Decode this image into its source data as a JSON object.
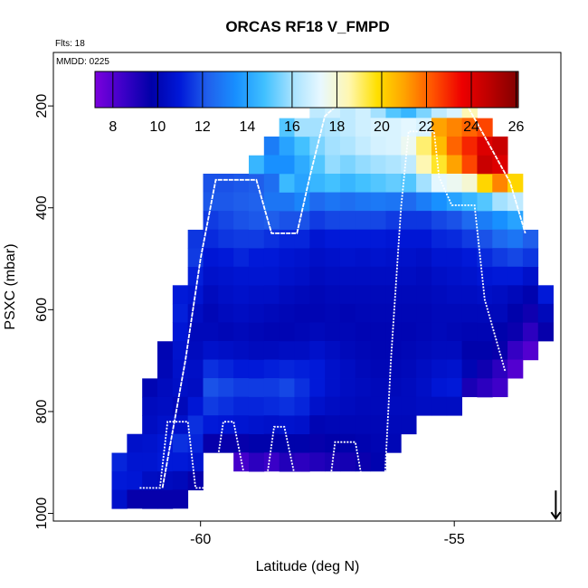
{
  "chart_data": {
    "type": "heatmap",
    "title": "ORCAS RF18 V_FMPD",
    "flights_note": "Flts: 18",
    "date_note": "MMDD: 0225",
    "xlabel": "Latitude (deg N)",
    "ylabel": "PSXC (mbar)",
    "xlim": [
      -62.9,
      -52.9
    ],
    "ylim": [
      1015,
      95
    ],
    "x_ticks": [
      -60,
      -55
    ],
    "x_tick_labels": [
      "-60",
      "-55"
    ],
    "y_ticks": [
      200,
      400,
      600,
      800,
      1000
    ],
    "y_tick_labels": [
      "200",
      "400",
      "600",
      "800",
      "1000"
    ],
    "colorbar": {
      "min": 7.2,
      "max": 26.1,
      "ticks": [
        8,
        10,
        12,
        14,
        16,
        18,
        20,
        22,
        24,
        26
      ],
      "tick_labels": [
        "8",
        "10",
        "12",
        "14",
        "16",
        "18",
        "20",
        "22",
        "24",
        "26"
      ],
      "colors": [
        "#7b00dd",
        "#3c00c8",
        "#0000a8",
        "#0018d8",
        "#2060ec",
        "#1890ff",
        "#40c0ff",
        "#a6e2ff",
        "#e8f8ff",
        "#fff7b0",
        "#ffe000",
        "#ffa000",
        "#ff5000",
        "#ee0000",
        "#bb0000",
        "#800000"
      ]
    },
    "bin": {
      "dlat": 0.3,
      "dp": 36.5
    },
    "columns": [
      {
        "lat": -61.6,
        "p_top": 881,
        "values": [
          11.2,
          11.0,
          10.6
        ]
      },
      {
        "lat": -61.3,
        "p_top": 844,
        "values": [
          10.6,
          10.8,
          10.9,
          9.6
        ]
      },
      {
        "lat": -61.0,
        "p_top": 735,
        "values": [
          10.0,
          10.3,
          10.4,
          10.7,
          10.8,
          10.4,
          9.6
        ]
      },
      {
        "lat": -60.7,
        "p_top": 662,
        "values": [
          10.0,
          10.1,
          10.3,
          10.4,
          10.6,
          10.9,
          11.0,
          10.3,
          9.6
        ]
      },
      {
        "lat": -60.4,
        "p_top": 552,
        "values": [
          11.0,
          11.1,
          10.9,
          10.7,
          10.6,
          10.5,
          10.2,
          10.6,
          11.4,
          11.0,
          10.2,
          9.6
        ]
      },
      {
        "lat": -60.1,
        "p_top": 443,
        "values": [
          11.5,
          11.6,
          11.1,
          10.8,
          10.4,
          10.2,
          10.3,
          10.5,
          10.4,
          10.9,
          11.4,
          11.2,
          10.8,
          9.6
        ]
      },
      {
        "lat": -59.8,
        "p_top": 333,
        "values": [
          12.0,
          12.1,
          11.6,
          11.3,
          10.9,
          10.6,
          10.3,
          10.1,
          10.2,
          10.6,
          11.4,
          12.0,
          11.6,
          11.0,
          9.6
        ]
      },
      {
        "lat": -59.5,
        "p_top": 333,
        "values": [
          12.0,
          12.1,
          11.8,
          11.5,
          11.0,
          10.7,
          10.5,
          10.3,
          10.1,
          10.5,
          11.2,
          11.8,
          11.4,
          10.9,
          9.6
        ]
      },
      {
        "lat": -59.2,
        "p_top": 333,
        "values": [
          12.1,
          12.2,
          12.0,
          11.6,
          11.2,
          10.8,
          10.6,
          10.4,
          10.2,
          10.4,
          11.0,
          11.6,
          11.2,
          10.8,
          9.6,
          8.3
        ]
      },
      {
        "lat": -58.9,
        "p_top": 297,
        "values": [
          14.5,
          12.2,
          12.3,
          12.1,
          11.6,
          11.0,
          10.8,
          10.5,
          10.3,
          10.1,
          10.3,
          11.0,
          11.6,
          11.2,
          10.7,
          9.8,
          8.8
        ]
      },
      {
        "lat": -58.6,
        "p_top": 260,
        "values": [
          13.0,
          13.5,
          12.6,
          12.8,
          12.2,
          11.4,
          11.0,
          10.8,
          10.5,
          10.2,
          10.0,
          10.3,
          11.1,
          11.6,
          11.3,
          10.6,
          9.8,
          8.5
        ]
      },
      {
        "lat": -58.3,
        "p_top": 224,
        "values": [
          15.0,
          14.0,
          13.5,
          14.6,
          12.8,
          12.0,
          11.2,
          10.8,
          10.6,
          10.3,
          10.1,
          10.0,
          10.4,
          11.2,
          11.8,
          11.4,
          10.7,
          9.8,
          9.0
        ]
      },
      {
        "lat": -58.0,
        "p_top": 224,
        "values": [
          16.0,
          14.8,
          14.2,
          14.0,
          13.2,
          12.0,
          11.2,
          10.7,
          10.5,
          10.2,
          10.0,
          10.1,
          10.4,
          11.1,
          11.4,
          11.2,
          10.6,
          9.8,
          8.8
        ]
      },
      {
        "lat": -57.7,
        "p_top": 187,
        "values": [
          16.5,
          16.0,
          15.5,
          15.0,
          14.5,
          12.5,
          11.6,
          10.8,
          10.5,
          10.3,
          10.1,
          10.0,
          10.2,
          10.6,
          11.0,
          11.0,
          10.6,
          10.0,
          9.6,
          9.0
        ]
      },
      {
        "lat": -57.4,
        "p_top": 187,
        "values": [
          16.8,
          16.2,
          16.0,
          15.8,
          14.8,
          12.8,
          11.8,
          11.0,
          10.6,
          10.4,
          10.2,
          10.1,
          10.1,
          10.4,
          10.6,
          10.6,
          10.4,
          10.1,
          9.7,
          9.2
        ]
      },
      {
        "lat": -57.1,
        "p_top": 187,
        "values": [
          16.5,
          16.5,
          16.2,
          15.5,
          14.5,
          12.6,
          11.8,
          11.0,
          10.7,
          10.4,
          10.2,
          10.0,
          10.1,
          10.2,
          10.4,
          10.4,
          10.3,
          10.1,
          9.8,
          9.3
        ]
      },
      {
        "lat": -56.8,
        "p_top": 187,
        "values": [
          16.8,
          16.8,
          16.6,
          15.8,
          14.8,
          12.8,
          11.8,
          11.0,
          10.6,
          10.4,
          10.2,
          10.1,
          10.0,
          10.1,
          10.2,
          10.3,
          10.2,
          10.1,
          9.9,
          9.5
        ]
      },
      {
        "lat": -56.5,
        "p_top": 187,
        "values": [
          16.0,
          17.0,
          16.9,
          16.0,
          15.0,
          12.9,
          11.8,
          11.0,
          10.7,
          10.4,
          10.2,
          10.1,
          10.0,
          10.0,
          10.1,
          10.2,
          10.2,
          10.1,
          10.0,
          9.9
        ]
      },
      {
        "lat": -56.2,
        "p_top": 187,
        "values": [
          15.0,
          17.0,
          17.0,
          16.2,
          15.2,
          12.8,
          11.6,
          10.9,
          10.6,
          10.4,
          10.2,
          10.1,
          10.0,
          10.0,
          10.1,
          10.2,
          10.3,
          10.2,
          10.1
        ]
      },
      {
        "lat": -55.9,
        "p_top": 187,
        "values": [
          14.5,
          17.2,
          17.5,
          16.5,
          15.0,
          12.5,
          11.5,
          10.9,
          10.6,
          10.4,
          10.2,
          10.1,
          10.0,
          10.1,
          10.2,
          10.3,
          10.3,
          10.2
        ]
      },
      {
        "lat": -55.6,
        "p_top": 187,
        "values": [
          15.5,
          17.0,
          19.0,
          18.5,
          16.0,
          13.0,
          11.5,
          10.9,
          10.5,
          10.3,
          10.2,
          10.1,
          10.1,
          10.2,
          10.4,
          10.5,
          10.4
        ]
      },
      {
        "lat": -55.3,
        "p_top": 187,
        "values": [
          16.5,
          21.0,
          20.5,
          19.5,
          17.2,
          13.5,
          11.8,
          11.2,
          10.8,
          10.5,
          10.3,
          10.2,
          10.2,
          10.3,
          10.6,
          10.9,
          10.4
        ]
      },
      {
        "lat": -55.0,
        "p_top": 187,
        "values": [
          17.0,
          21.5,
          22.0,
          21.0,
          17.5,
          14.0,
          12.0,
          11.3,
          10.8,
          10.6,
          10.4,
          10.2,
          10.1,
          10.3,
          10.7,
          11.0,
          10.4
        ]
      },
      {
        "lat": -54.7,
        "p_top": 187,
        "values": [
          18.5,
          22.0,
          23.0,
          22.5,
          18.0,
          14.5,
          12.5,
          11.6,
          11.0,
          10.7,
          10.4,
          10.2,
          10.0,
          9.8,
          10.0,
          9.2
        ]
      },
      {
        "lat": -54.4,
        "p_top": 224,
        "values": [
          22.5,
          24.0,
          24.5,
          20.0,
          15.0,
          13.0,
          12.0,
          11.3,
          10.9,
          10.5,
          10.2,
          10.0,
          9.8,
          9.4,
          8.8
        ]
      },
      {
        "lat": -54.1,
        "p_top": 260,
        "values": [
          24.5,
          24.0,
          21.5,
          16.0,
          13.5,
          12.5,
          11.6,
          11.0,
          10.4,
          10.2,
          9.8,
          9.6,
          8.8,
          8.4
        ]
      },
      {
        "lat": -53.8,
        "p_top": 333,
        "values": [
          20.0,
          16.5,
          14.0,
          12.8,
          11.8,
          11.0,
          10.2,
          9.8,
          9.5,
          8.6,
          8.0
        ]
      },
      {
        "lat": -53.5,
        "p_top": 443,
        "values": [
          12.2,
          11.5,
          10.6,
          9.9,
          9.4,
          8.8,
          8.0
        ]
      },
      {
        "lat": -53.2,
        "p_top": 552,
        "values": [
          11.0,
          10.2,
          9.6
        ]
      }
    ],
    "flight_track": {
      "pressure_levels": [
        950,
        820,
        970,
        980,
        860,
        345,
        450,
        180,
        250,
        395,
        720
      ],
      "points": [
        [
          -61.2,
          950
        ],
        [
          -60.8,
          950
        ],
        [
          -60.65,
          820
        ],
        [
          -60.25,
          820
        ],
        [
          -60.1,
          950
        ],
        [
          -59.75,
          950
        ],
        [
          -59.55,
          820
        ],
        [
          -59.35,
          820
        ],
        [
          -59.05,
          970
        ],
        [
          -58.75,
          970
        ],
        [
          -58.55,
          830
        ],
        [
          -58.35,
          830
        ],
        [
          -58.05,
          970
        ],
        [
          -57.95,
          980
        ],
        [
          -57.5,
          980
        ],
        [
          -57.35,
          860
        ],
        [
          -56.95,
          860
        ],
        [
          -56.75,
          970
        ],
        [
          -56.55,
          975
        ],
        [
          -56.4,
          990
        ],
        [
          -56.25,
          700
        ],
        [
          -56.05,
          400
        ],
        [
          -55.9,
          250
        ],
        [
          -55.4,
          250
        ],
        [
          -55.3,
          340
        ],
        [
          -55.05,
          395
        ],
        [
          -54.6,
          395
        ],
        [
          -54.4,
          580
        ],
        [
          -54.0,
          720
        ],
        [
          -60.75,
          950
        ],
        [
          -60.3,
          700
        ],
        [
          -60.0,
          500
        ],
        [
          -59.7,
          345
        ],
        [
          -58.9,
          345
        ],
        [
          -58.6,
          450
        ],
        [
          -58.1,
          450
        ],
        [
          -57.85,
          340
        ],
        [
          -57.55,
          220
        ],
        [
          -57.1,
          180
        ],
        [
          -55.3,
          180
        ],
        [
          -54.8,
          190
        ],
        [
          -54.4,
          260
        ],
        [
          -53.9,
          350
        ],
        [
          -53.6,
          450
        ]
      ]
    },
    "arrow_marker": {
      "lat": -53.0,
      "p_top": 955,
      "p_bottom": 1010
    }
  }
}
